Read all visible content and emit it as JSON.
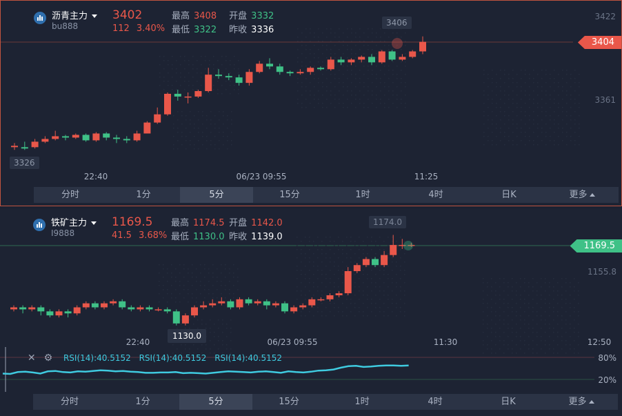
{
  "panels": [
    {
      "name": "沥青主力",
      "code": "bu888",
      "price": "3402",
      "change": "112",
      "change_pct": "3.40%",
      "stats": {
        "high_label": "最高",
        "high": "3408",
        "open_label": "开盘",
        "open": "3332",
        "low_label": "最低",
        "low": "3322",
        "prev_label": "昨收",
        "prev": "3336"
      },
      "price_tag": "3404",
      "axis_labels": [
        "3422",
        "3361"
      ],
      "time_labels": [
        "22:40",
        "06/23 09:55",
        "11:25"
      ],
      "max_marker": "3406",
      "min_marker": "3326",
      "tabs": [
        "分时",
        "1分",
        "5分",
        "15分",
        "1时",
        "4时",
        "日K",
        "更多"
      ],
      "active_tab": 2,
      "range": [
        3308,
        3426
      ],
      "candles": [
        [
          3327,
          3328,
          3325,
          3330
        ],
        [
          3327,
          3326,
          3325,
          3331
        ],
        [
          3327,
          3331,
          3326,
          3333
        ],
        [
          3331,
          3333,
          3330,
          3335
        ],
        [
          3333,
          3335,
          3332,
          3339
        ],
        [
          3335,
          3334,
          3332,
          3336
        ],
        [
          3334,
          3336,
          3333,
          3337
        ],
        [
          3336,
          3332,
          3331,
          3337
        ],
        [
          3332,
          3337,
          3331,
          3338
        ],
        [
          3337,
          3334,
          3332,
          3338
        ],
        [
          3334,
          3333,
          3330,
          3336
        ],
        [
          3333,
          3332,
          3330,
          3335
        ],
        [
          3332,
          3337,
          3331,
          3339
        ],
        [
          3337,
          3345,
          3337,
          3346
        ],
        [
          3345,
          3351,
          3344,
          3356
        ],
        [
          3351,
          3366,
          3350,
          3367
        ],
        [
          3366,
          3364,
          3361,
          3369
        ],
        [
          3364,
          3364,
          3359,
          3367
        ],
        [
          3364,
          3368,
          3363,
          3369
        ],
        [
          3368,
          3380,
          3367,
          3385
        ],
        [
          3380,
          3379,
          3377,
          3384
        ],
        [
          3379,
          3378,
          3376,
          3381
        ],
        [
          3378,
          3374,
          3372,
          3380
        ],
        [
          3374,
          3382,
          3372,
          3384
        ],
        [
          3382,
          3388,
          3381,
          3390
        ],
        [
          3388,
          3386,
          3384,
          3392
        ],
        [
          3386,
          3382,
          3380,
          3388
        ],
        [
          3382,
          3381,
          3379,
          3383
        ],
        [
          3381,
          3382,
          3380,
          3384
        ],
        [
          3382,
          3385,
          3380,
          3386
        ],
        [
          3385,
          3384,
          3383,
          3386
        ],
        [
          3384,
          3391,
          3383,
          3393
        ],
        [
          3391,
          3389,
          3387,
          3393
        ],
        [
          3389,
          3391,
          3387,
          3392
        ],
        [
          3391,
          3393,
          3389,
          3394
        ],
        [
          3393,
          3389,
          3387,
          3395
        ],
        [
          3389,
          3397,
          3388,
          3398
        ],
        [
          3397,
          3391,
          3390,
          3398
        ],
        [
          3391,
          3393,
          3390,
          3395
        ],
        [
          3393,
          3397,
          3392,
          3398
        ],
        [
          3397,
          3404,
          3395,
          3408
        ]
      ]
    },
    {
      "name": "铁矿主力",
      "code": "I9888",
      "price": "1169.5",
      "change": "41.5",
      "change_pct": "3.68%",
      "stats": {
        "high_label": "最高",
        "high": "1174.5",
        "open_label": "开盘",
        "open": "1142.0",
        "low_label": "最低",
        "low": "1130.0",
        "prev_label": "昨收",
        "prev": "1139.0"
      },
      "price_tag": "1169.5",
      "axis_labels": [
        "1155.8"
      ],
      "time_labels": [
        "22:40",
        "06/23 09:55",
        "11:30",
        "12:50"
      ],
      "max_marker": "1174.0",
      "min_marker": "1130.0",
      "rsi_labels": [
        "RSI(14):40.5152",
        "RSI(14):40.5152",
        "RSI(14):40.5152"
      ],
      "rsi_levels": [
        "80%",
        "20%"
      ],
      "rsi_values": [
        36,
        35,
        40,
        41,
        39,
        36,
        42,
        43,
        40,
        39,
        42,
        41,
        43,
        45,
        44,
        42,
        43,
        41,
        40,
        38,
        38,
        39,
        39,
        40,
        37,
        38,
        37,
        36,
        38,
        40,
        42,
        41,
        40,
        39,
        41,
        42,
        40,
        38,
        42,
        40,
        39,
        41,
        44,
        45,
        47,
        52,
        56,
        57,
        54,
        55,
        57,
        58,
        58,
        57,
        58
      ],
      "tabs": [
        "分时",
        "1分",
        "5分",
        "15分",
        "1时",
        "4时",
        "日K",
        "更多"
      ],
      "active_tab": 2,
      "range": [
        1120,
        1180
      ],
      "candles": [
        [
          1137,
          1138,
          1136,
          1139
        ],
        [
          1138,
          1137,
          1135,
          1139
        ],
        [
          1137,
          1138,
          1136,
          1139
        ],
        [
          1138,
          1136,
          1134,
          1139
        ],
        [
          1136,
          1134,
          1133,
          1137
        ],
        [
          1134,
          1136,
          1133,
          1137
        ],
        [
          1136,
          1135,
          1133,
          1137
        ],
        [
          1135,
          1138,
          1134,
          1139
        ],
        [
          1138,
          1140,
          1137,
          1141
        ],
        [
          1140,
          1138,
          1137,
          1141
        ],
        [
          1138,
          1140,
          1137,
          1141
        ],
        [
          1140,
          1141,
          1139,
          1142
        ],
        [
          1141,
          1138,
          1137,
          1142
        ],
        [
          1138,
          1137,
          1136,
          1139
        ],
        [
          1137,
          1138,
          1136,
          1139
        ],
        [
          1138,
          1137,
          1136,
          1139
        ],
        [
          1137,
          1137,
          1136,
          1138
        ],
        [
          1137,
          1136,
          1135,
          1138
        ],
        [
          1136,
          1130,
          1129,
          1137
        ],
        [
          1130,
          1134,
          1129,
          1135
        ],
        [
          1134,
          1138,
          1133,
          1139
        ],
        [
          1138,
          1139,
          1137,
          1141
        ],
        [
          1139,
          1140,
          1138,
          1142
        ],
        [
          1140,
          1141,
          1139,
          1143
        ],
        [
          1141,
          1138,
          1137,
          1142
        ],
        [
          1138,
          1142,
          1137,
          1143
        ],
        [
          1142,
          1140,
          1139,
          1143
        ],
        [
          1140,
          1141,
          1139,
          1142
        ],
        [
          1141,
          1139,
          1137,
          1142
        ],
        [
          1139,
          1140,
          1138,
          1141
        ],
        [
          1140,
          1136,
          1135,
          1141
        ],
        [
          1136,
          1138,
          1135,
          1139
        ],
        [
          1138,
          1139,
          1137,
          1140
        ],
        [
          1139,
          1142,
          1138,
          1143
        ],
        [
          1142,
          1142,
          1141,
          1143
        ],
        [
          1142,
          1144,
          1141,
          1145
        ],
        [
          1144,
          1145,
          1143,
          1146
        ],
        [
          1145,
          1156,
          1144,
          1158
        ],
        [
          1156,
          1159,
          1155,
          1160
        ],
        [
          1159,
          1162,
          1158,
          1163
        ],
        [
          1162,
          1159,
          1158,
          1163
        ],
        [
          1159,
          1164,
          1158,
          1166
        ],
        [
          1164,
          1169,
          1163,
          1174
        ],
        [
          1169,
          1169,
          1167,
          1172
        ],
        [
          1169,
          1169,
          1168,
          1170
        ]
      ]
    }
  ],
  "colors": {
    "up": "#e9574a",
    "down": "#3fc187",
    "rsi": "#3fcbe0",
    "bg": "#1d2333"
  }
}
